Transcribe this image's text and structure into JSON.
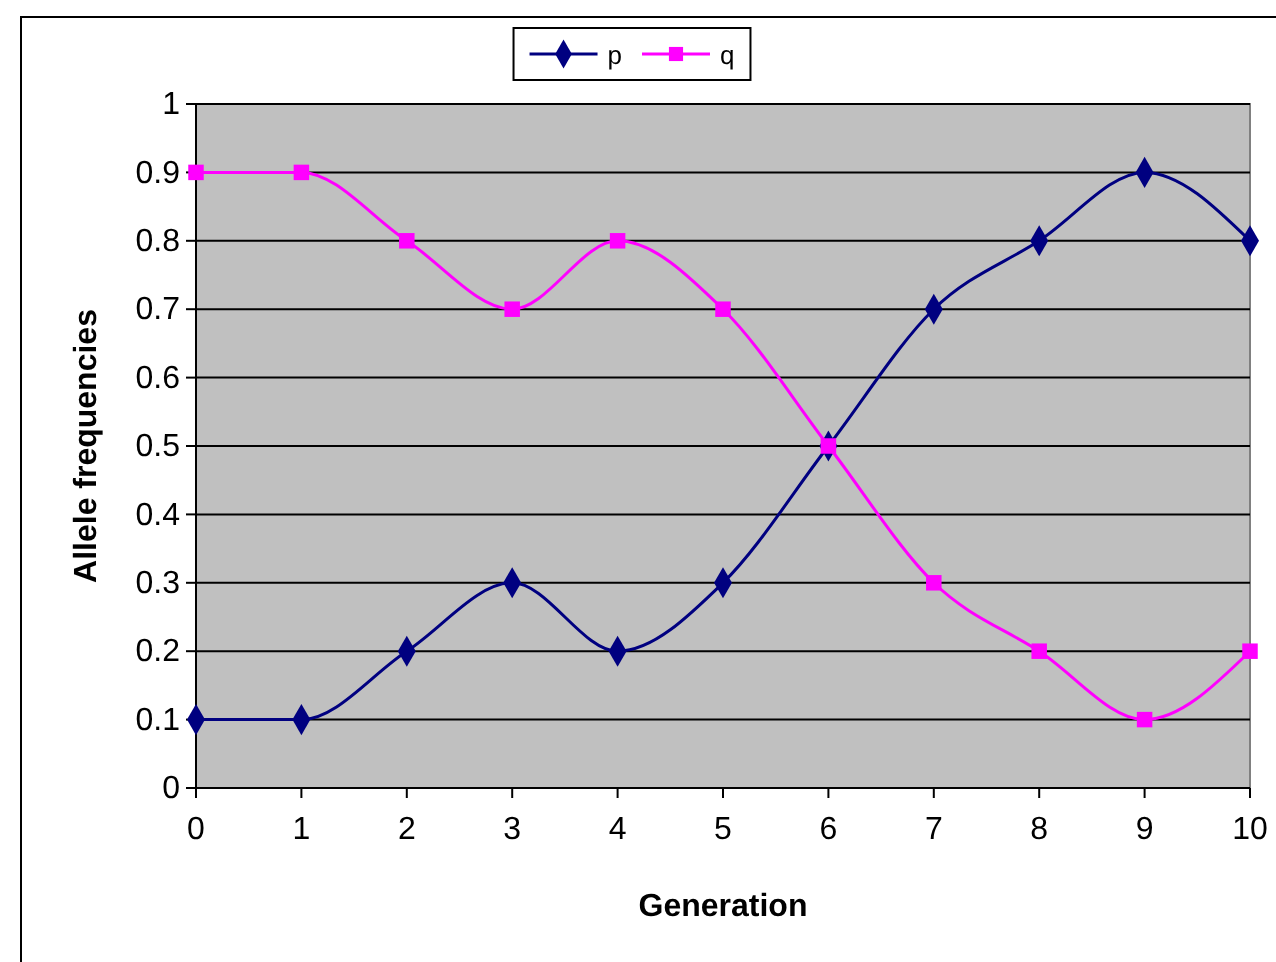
{
  "chart_data": {
    "type": "line",
    "xlabel": "Generation",
    "ylabel": "Allele frequencies",
    "x": [
      0,
      1,
      2,
      3,
      4,
      5,
      6,
      7,
      8,
      9,
      10
    ],
    "xlim": [
      0,
      10
    ],
    "xticks": [
      0,
      1,
      2,
      3,
      4,
      5,
      6,
      7,
      8,
      9,
      10
    ],
    "ylim": [
      0,
      1
    ],
    "yticks": [
      0,
      0.1,
      0.2,
      0.3,
      0.4,
      0.5,
      0.6,
      0.7,
      0.8,
      0.9,
      1
    ],
    "grid": "y",
    "legend": "top",
    "series": [
      {
        "name": "p",
        "color": "#000080",
        "marker": "diamond",
        "values": [
          0.1,
          0.1,
          0.2,
          0.3,
          0.2,
          0.3,
          0.5,
          0.7,
          0.8,
          0.9,
          0.8
        ]
      },
      {
        "name": "q",
        "color": "#ff00ff",
        "marker": "square",
        "values": [
          0.9,
          0.9,
          0.8,
          0.7,
          0.8,
          0.7,
          0.5,
          0.3,
          0.2,
          0.1,
          0.2
        ]
      }
    ]
  }
}
